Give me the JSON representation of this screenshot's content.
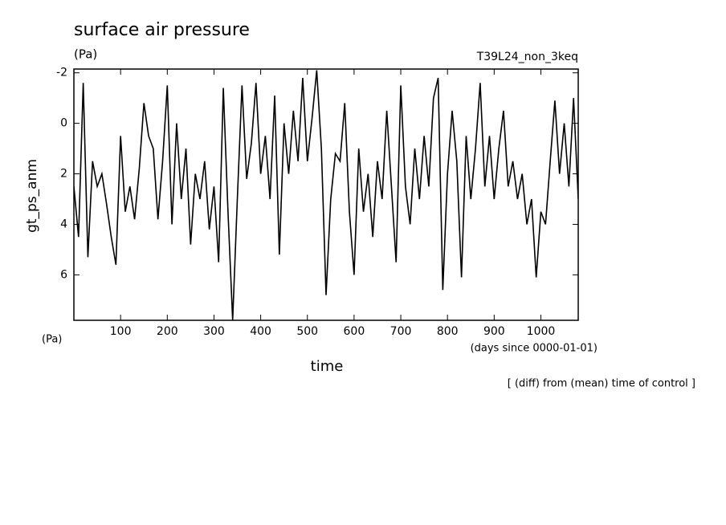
{
  "chart_data": {
    "type": "line",
    "title": "surface air pressure",
    "unit_top": "(Pa)",
    "run_name": "T39L24_non_3keq",
    "y_label": "gt_ps_anm",
    "unit_bottom": "(Pa)",
    "x_label": "time",
    "x_unit": "(days since 0000-01-01)",
    "note": "[ (diff) from (mean) time of control ]",
    "xlim": [
      0,
      1080
    ],
    "xticks": [
      100,
      200,
      300,
      400,
      500,
      600,
      700,
      800,
      900,
      1000
    ],
    "ylim": [
      7.8,
      -2.15
    ],
    "yticks": [
      -2,
      0,
      2,
      4,
      6
    ],
    "x": [
      0,
      10,
      20,
      30,
      40,
      50,
      60,
      70,
      80,
      90,
      100,
      110,
      120,
      130,
      140,
      150,
      160,
      170,
      180,
      190,
      200,
      210,
      220,
      230,
      240,
      250,
      260,
      270,
      280,
      290,
      300,
      310,
      320,
      330,
      340,
      350,
      360,
      370,
      380,
      390,
      400,
      410,
      420,
      430,
      440,
      450,
      460,
      470,
      480,
      490,
      500,
      510,
      520,
      530,
      540,
      550,
      560,
      570,
      580,
      590,
      600,
      610,
      620,
      630,
      640,
      650,
      660,
      670,
      680,
      690,
      700,
      710,
      720,
      730,
      740,
      750,
      760,
      770,
      780,
      790,
      800,
      810,
      820,
      830,
      840,
      850,
      860,
      870,
      880,
      890,
      900,
      910,
      920,
      930,
      940,
      950,
      960,
      970,
      980,
      990,
      1000,
      1010,
      1020,
      1030,
      1040,
      1050,
      1060,
      1070,
      1080
    ],
    "series": [
      {
        "name": "gt_ps_anm",
        "color": "#000000",
        "values": [
          2.5,
          4.5,
          -1.6,
          5.3,
          1.5,
          2.5,
          2.0,
          3.2,
          4.5,
          5.6,
          0.5,
          3.5,
          2.5,
          3.8,
          1.8,
          -0.8,
          0.5,
          1.0,
          3.8,
          1.5,
          -1.5,
          4.0,
          0.0,
          3.0,
          1.0,
          4.8,
          2.0,
          3.0,
          1.5,
          4.2,
          2.5,
          5.5,
          -1.4,
          3.5,
          7.8,
          3.0,
          -1.5,
          2.2,
          0.8,
          -1.6,
          2.0,
          0.5,
          3.0,
          -1.1,
          5.2,
          0.0,
          2.0,
          -0.5,
          1.5,
          -1.8,
          1.5,
          -0.2,
          -2.1,
          1.0,
          6.8,
          3.0,
          1.2,
          1.5,
          -0.8,
          3.5,
          6.0,
          1.0,
          3.5,
          2.0,
          4.5,
          1.5,
          3.0,
          -0.5,
          2.5,
          5.5,
          -1.5,
          2.5,
          4.0,
          1.0,
          3.0,
          0.5,
          2.5,
          -1.0,
          -1.8,
          6.6,
          2.0,
          -0.5,
          1.5,
          6.1,
          0.5,
          3.0,
          1.0,
          -1.6,
          2.5,
          0.5,
          3.0,
          1.0,
          -0.5,
          2.5,
          1.5,
          3.0,
          2.0,
          4.0,
          3.0,
          6.1,
          3.5,
          4.0,
          1.5,
          -0.9,
          2.0,
          0.0,
          2.5,
          -1.0,
          3.0
        ]
      }
    ]
  }
}
